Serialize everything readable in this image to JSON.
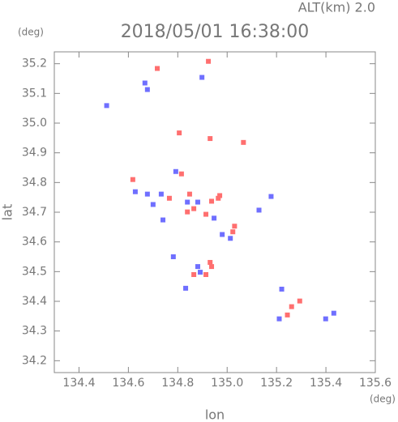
{
  "chart_data": {
    "type": "scatter",
    "title": "2018/05/01 16:38:00",
    "subtitle": "ALT(km) 2.0",
    "x_label": "lon",
    "y_label": "lat",
    "x_unit": "(deg)",
    "y_unit": "(deg)",
    "xlim": [
      134.3,
      135.6
    ],
    "ylim": [
      34.16,
      35.24
    ],
    "xticks": [
      134.4,
      134.6,
      134.8,
      {
        "value": 135,
        "label": "135.0"
      },
      135.2,
      135.4,
      135.6
    ],
    "yticks": [
      34.2,
      34.3,
      34.4,
      34.5,
      34.6,
      34.7,
      34.8,
      34.9,
      {
        "value": 35,
        "label": "35.0"
      },
      35.1,
      35.2
    ],
    "series": [
      {
        "color": "#ff6f6f",
        "x": [
          134.717,
          134.924,
          134.806,
          134.931,
          135.066,
          134.618,
          134.848,
          134.865,
          134.937,
          134.964,
          134.914,
          135.03,
          134.931,
          134.914,
          134.937,
          135.261,
          135.294,
          135.244,
          134.815,
          134.766,
          134.865,
          134.97,
          135.023,
          134.839
        ],
        "y": [
          35.184,
          35.208,
          34.967,
          34.948,
          34.935,
          34.81,
          34.761,
          34.712,
          34.737,
          34.747,
          34.693,
          34.653,
          34.531,
          34.49,
          34.517,
          34.382,
          34.401,
          34.354,
          34.829,
          34.747,
          34.49,
          34.756,
          34.634,
          34.701
        ]
      },
      {
        "color": "#6f6fff",
        "x": [
          134.667,
          134.677,
          134.512,
          134.898,
          134.628,
          134.7,
          134.792,
          134.733,
          134.881,
          134.839,
          134.947,
          134.98,
          135.013,
          134.782,
          134.891,
          134.881,
          134.832,
          135.221,
          135.211,
          135.399,
          135.432,
          135.129,
          135.178,
          134.677,
          134.74
        ],
        "y": [
          35.135,
          35.113,
          35.059,
          35.154,
          34.769,
          34.726,
          34.837,
          34.761,
          34.734,
          34.734,
          34.68,
          34.625,
          34.612,
          34.55,
          34.498,
          34.517,
          34.444,
          34.441,
          34.341,
          34.341,
          34.36,
          34.707,
          34.753,
          34.761,
          34.674
        ]
      }
    ]
  }
}
